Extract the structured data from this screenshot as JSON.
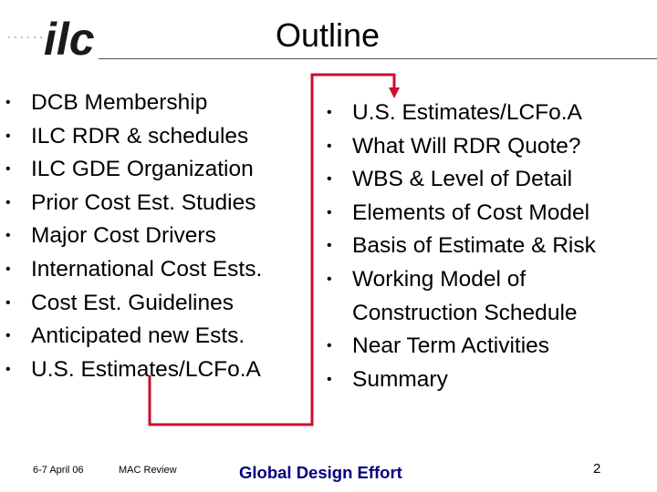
{
  "slide": {
    "title": "Outline",
    "logo_text": "ilc",
    "left_list": [
      "DCB Membership",
      "ILC RDR & schedules",
      "ILC GDE Organization",
      "Prior Cost Est. Studies",
      "Major Cost Drivers",
      "International Cost Ests.",
      "Cost Est. Guidelines",
      "Anticipated new Ests.",
      "U.S. Estimates/LCFo.A"
    ],
    "right_list": [
      "U.S. Estimates/LCFo.A",
      "What Will RDR Quote?",
      "WBS & Level of Detail",
      "Elements of Cost Model",
      "Basis of Estimate & Risk",
      "Working Model of",
      "Construction Schedule",
      "Near Term Activities",
      "Summary"
    ],
    "bullet_glyph": "•",
    "arrow_color": "#c8102e"
  },
  "footer": {
    "date": "6-7 April 06",
    "meeting": "MAC Review",
    "organization": "Global Design Effort",
    "page_number": "2"
  }
}
